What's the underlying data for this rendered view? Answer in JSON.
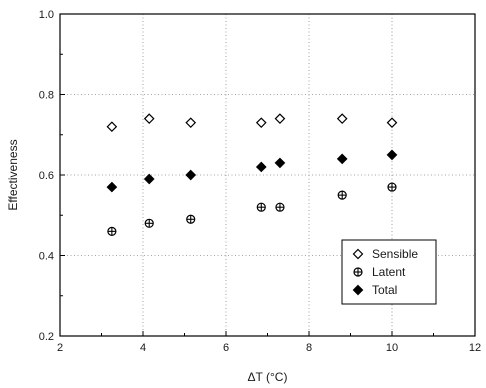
{
  "chart_data": {
    "type": "scatter",
    "x": [
      3.25,
      4.15,
      5.15,
      6.85,
      7.3,
      8.8,
      10.0
    ],
    "series": [
      {
        "name": "Sensible",
        "marker": "open-diamond",
        "values": [
          0.72,
          0.74,
          0.73,
          0.73,
          0.74,
          0.74,
          0.73
        ]
      },
      {
        "name": "Latent",
        "marker": "crossed-circle",
        "values": [
          0.46,
          0.48,
          0.49,
          0.52,
          0.52,
          0.55,
          0.57
        ]
      },
      {
        "name": "Total",
        "marker": "filled-diamond",
        "values": [
          0.57,
          0.59,
          0.6,
          0.62,
          0.63,
          0.64,
          0.65
        ]
      }
    ],
    "xlabel": "ΔT (°C)",
    "ylabel": "Effectiveness",
    "xlim": [
      2,
      12
    ],
    "ylim": [
      0.2,
      1.0
    ],
    "xticks": [
      2,
      4,
      6,
      8,
      10,
      12
    ],
    "yticks": [
      0.2,
      0.4,
      0.6,
      0.8,
      1.0
    ],
    "ytick_labels": [
      "0.2",
      "0.4",
      "0.6",
      "0.8",
      "1.0"
    ],
    "grid": "dotted",
    "legend_position": "bottom-right",
    "color": "#000000"
  }
}
